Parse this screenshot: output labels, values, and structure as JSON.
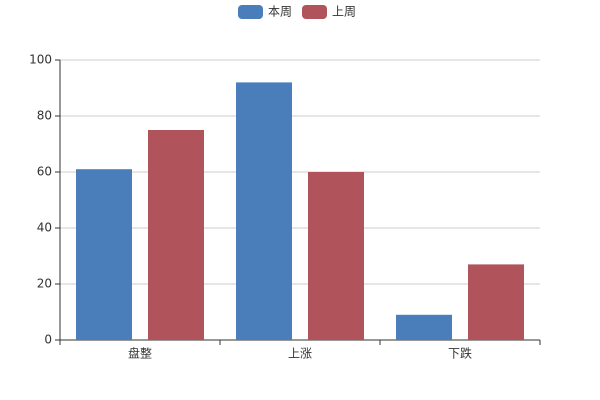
{
  "chart_data": {
    "type": "bar",
    "categories": [
      "盘整",
      "上涨",
      "下跌"
    ],
    "series": [
      {
        "name": "本周",
        "color": "#4a7ebb",
        "values": [
          61,
          92,
          9
        ]
      },
      {
        "name": "上周",
        "color": "#b0535a",
        "values": [
          75,
          60,
          27
        ]
      }
    ],
    "ylim": [
      0,
      100
    ],
    "yticks": [
      0,
      20,
      40,
      60,
      80,
      100
    ],
    "grid": true,
    "legend": "top"
  }
}
